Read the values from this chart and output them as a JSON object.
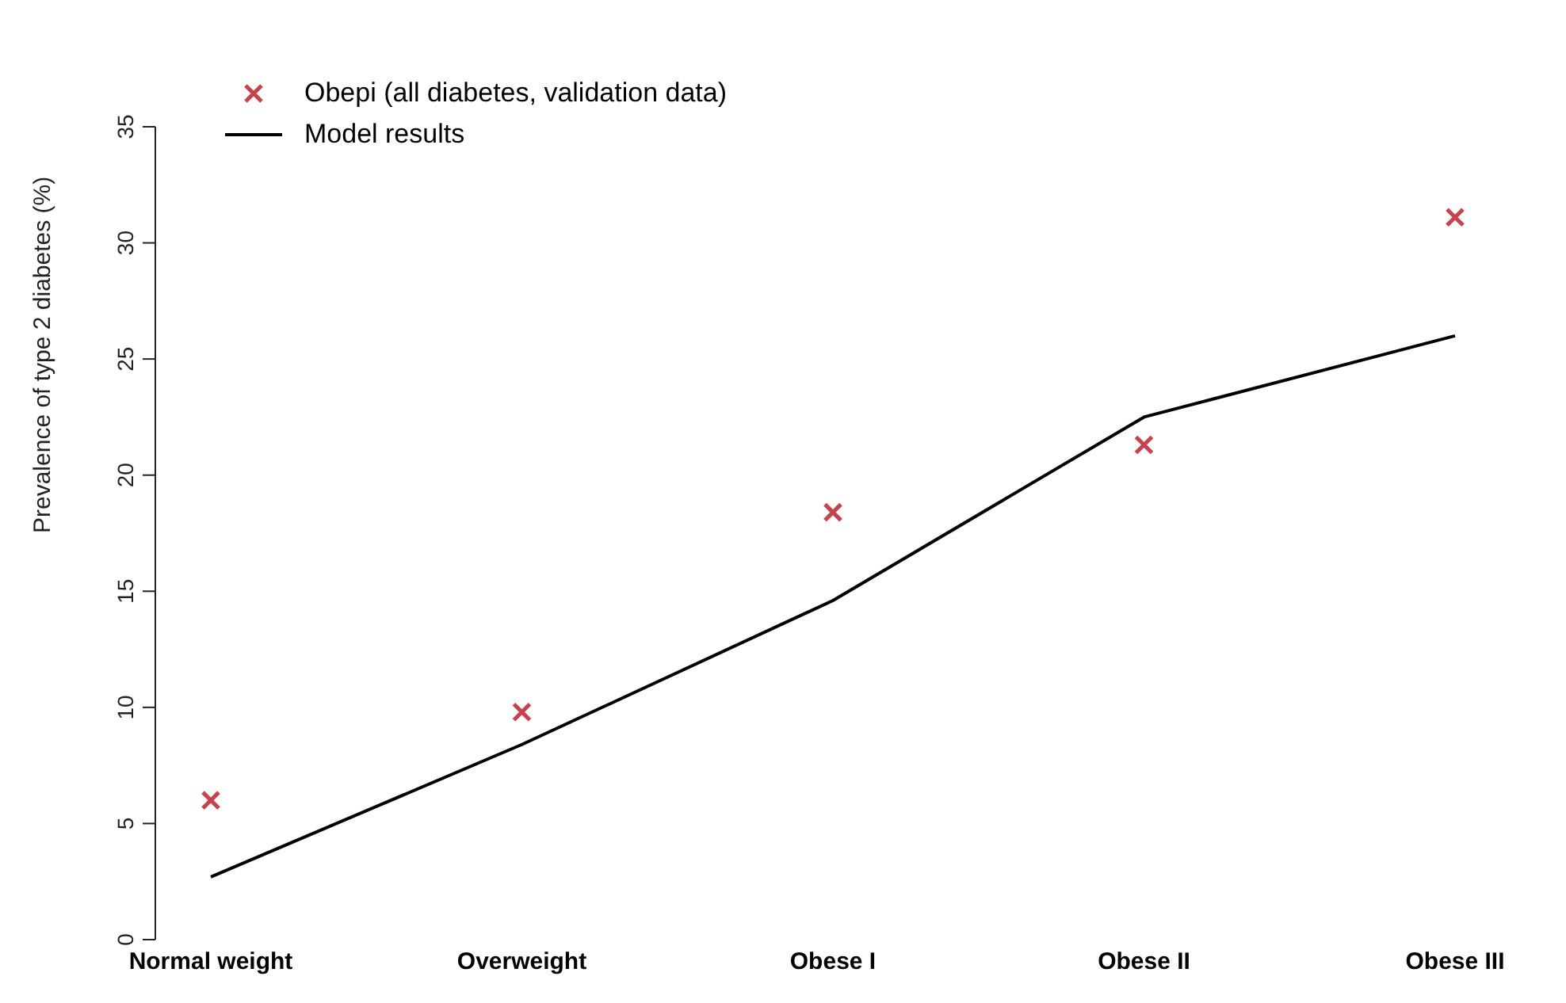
{
  "chart_data": {
    "type": "line",
    "ylabel": "Prevalence of type 2 diabetes (%)",
    "categories": [
      "Normal weight",
      "Overweight",
      "Obese I",
      "Obese II",
      "Obese III"
    ],
    "series": [
      {
        "name": "Obepi (all diabetes, validation data)",
        "type": "scatter",
        "marker": "cross",
        "color": "#c9414a",
        "values": [
          6.0,
          9.8,
          18.4,
          21.3,
          31.1
        ]
      },
      {
        "name": "Model results",
        "color": "#000000",
        "values": [
          2.7,
          8.4,
          14.6,
          22.5,
          26.0
        ]
      }
    ],
    "ylim": [
      0,
      35
    ],
    "yticks": [
      0,
      5,
      10,
      15,
      20,
      25,
      30,
      35
    ],
    "legend": "top left",
    "grid": false
  }
}
